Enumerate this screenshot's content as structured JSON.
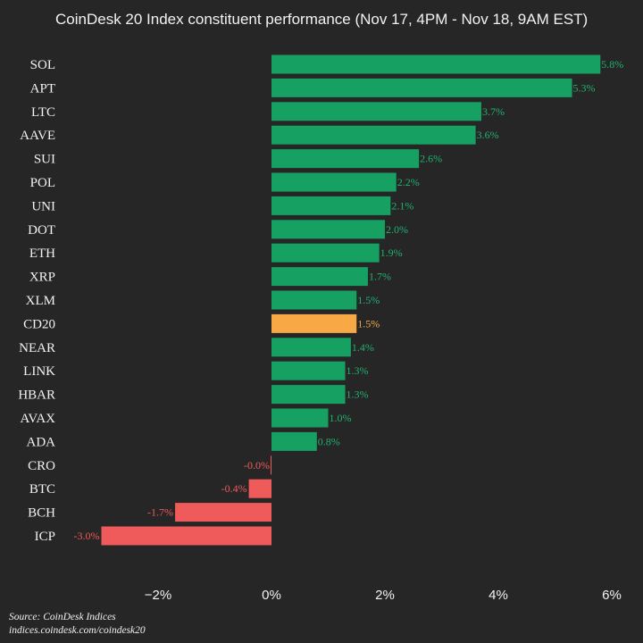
{
  "colors": {
    "background": "#262626",
    "positive": "#16a062",
    "negative": "#ef5a5a",
    "highlight": "#f8a946",
    "positive_text": "#22b070",
    "negative_text": "#f05a5a",
    "highlight_text": "#f8a946",
    "text": "#f2f2f2"
  },
  "chart_data": {
    "type": "bar",
    "orientation": "horizontal",
    "title": "CoinDesk 20 Index constituent performance (Nov 17, 4PM - Nov 18, 9AM EST)",
    "categories": [
      "SOL",
      "APT",
      "LTC",
      "AAVE",
      "SUI",
      "POL",
      "UNI",
      "DOT",
      "ETH",
      "XRP",
      "XLM",
      "CD20",
      "NEAR",
      "LINK",
      "HBAR",
      "AVAX",
      "ADA",
      "CRO",
      "BTC",
      "BCH",
      "ICP"
    ],
    "values": [
      5.8,
      5.3,
      3.7,
      3.6,
      2.6,
      2.2,
      2.1,
      2.0,
      1.9,
      1.7,
      1.5,
      1.5,
      1.4,
      1.3,
      1.3,
      1.0,
      0.8,
      -0.0,
      -0.4,
      -1.7,
      -3.0
    ],
    "value_labels": [
      "5.8%",
      "5.3%",
      "3.7%",
      "3.6%",
      "2.6%",
      "2.2%",
      "2.1%",
      "2.0%",
      "1.9%",
      "1.7%",
      "1.5%",
      "1.5%",
      "1.4%",
      "1.3%",
      "1.3%",
      "1.0%",
      "0.8%",
      "-0.0%",
      "-0.4%",
      "-1.7%",
      "-3.0%"
    ],
    "highlight": "CD20",
    "xlim": [
      -4.0,
      6.0
    ],
    "xticks": [
      -2,
      0,
      2,
      4,
      6
    ],
    "xtick_labels": [
      "−2%",
      "0%",
      "2%",
      "4%",
      "6%"
    ],
    "xlabel": "",
    "ylabel": "",
    "grid": false,
    "legend": "none"
  },
  "source": {
    "line1": "Source: CoinDesk Indices",
    "line2": "indices.coindesk.com/coindesk20"
  }
}
